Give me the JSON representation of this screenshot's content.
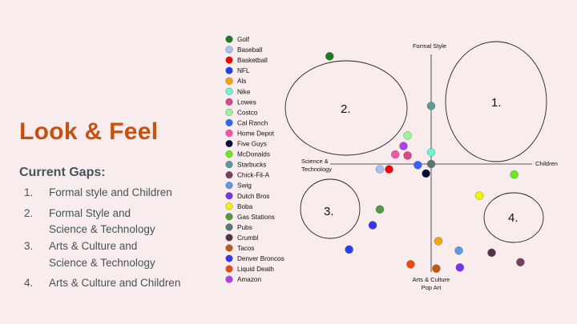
{
  "title": "Look & Feel",
  "gaps": {
    "heading": "Current Gaps:",
    "items": [
      {
        "num": "1.",
        "lines": [
          "Formal style and Children"
        ]
      },
      {
        "num": "2.",
        "lines": [
          "Formal Style and",
          "Science & Technology"
        ]
      },
      {
        "num": "3.",
        "lines": [
          "Arts & Culture and",
          "Science & Technology"
        ]
      },
      {
        "num": "4.",
        "lines": [
          "Arts & Culture and Children"
        ]
      }
    ]
  },
  "chart_data": {
    "type": "scatter",
    "axes": {
      "top": "Formal Style",
      "right": "Children",
      "left_line1": "Science &",
      "left_line2": "Technology",
      "bottom_line1": "Arts & Culture",
      "bottom_line2": "Pop Art"
    },
    "xlim": [
      -1,
      1
    ],
    "ylim": [
      -1,
      1
    ],
    "quadrant_labels": [
      "1.",
      "2.",
      "3.",
      "4."
    ],
    "series": [
      {
        "name": "Golf",
        "color": "#1e7a1e",
        "x": -0.99,
        "y": 1.02
      },
      {
        "name": "Baseball",
        "color": "#a4c2f4",
        "x": -0.5,
        "y": -0.05
      },
      {
        "name": "Basketball",
        "color": "#ff0000",
        "x": -0.41,
        "y": -0.05
      },
      {
        "name": "NFL",
        "color": "#1f3fff",
        "x": -0.8,
        "y": -0.81
      },
      {
        "name": "Als",
        "color": "#f4a40c",
        "x": 0.07,
        "y": -0.73
      },
      {
        "name": "Nike",
        "color": "#6ef5d8",
        "x": 0.0,
        "y": 0.11
      },
      {
        "name": "Lowes",
        "color": "#d6488a",
        "x": -0.23,
        "y": 0.08
      },
      {
        "name": "Costco",
        "color": "#98f79a",
        "x": -0.23,
        "y": 0.27
      },
      {
        "name": "Cal Ranch",
        "color": "#3366ff",
        "x": -0.13,
        "y": -0.01
      },
      {
        "name": "Home Depot",
        "color": "#ff4fa8",
        "x": -0.35,
        "y": 0.09
      },
      {
        "name": "Five Guys",
        "color": "#050a3c",
        "x": -0.05,
        "y": -0.09
      },
      {
        "name": "McDonalds",
        "color": "#66ee11",
        "x": 0.81,
        "y": -0.1
      },
      {
        "name": "Starbucks",
        "color": "#5a9c92",
        "x": 0.0,
        "y": 0.55
      },
      {
        "name": "Chick-Fil-A",
        "color": "#7a3e62",
        "x": 0.87,
        "y": -0.93
      },
      {
        "name": "Swig",
        "color": "#5b9be0",
        "x": 0.27,
        "y": -0.82
      },
      {
        "name": "Dutch Bros",
        "color": "#7a30f0",
        "x": 0.28,
        "y": -0.98
      },
      {
        "name": "Boba",
        "color": "#f2f700",
        "x": 0.47,
        "y": -0.3
      },
      {
        "name": "Gas Stations",
        "color": "#4e9a3c",
        "x": -0.5,
        "y": -0.43
      },
      {
        "name": "Pubs",
        "color": "#587872",
        "x": 0.0,
        "y": 0.0
      },
      {
        "name": "Crumbl",
        "color": "#58304a",
        "x": 0.59,
        "y": -0.84
      },
      {
        "name": "Tacos",
        "color": "#c05a10",
        "x": 0.05,
        "y": -0.99
      },
      {
        "name": "Denver Broncos",
        "color": "#3a34f5",
        "x": -0.57,
        "y": -0.58
      },
      {
        "name": "Liquid Death",
        "color": "#ec4a08",
        "x": -0.2,
        "y": -0.95
      },
      {
        "name": "Amazon",
        "color": "#b43ef0",
        "x": -0.27,
        "y": 0.17
      }
    ]
  }
}
